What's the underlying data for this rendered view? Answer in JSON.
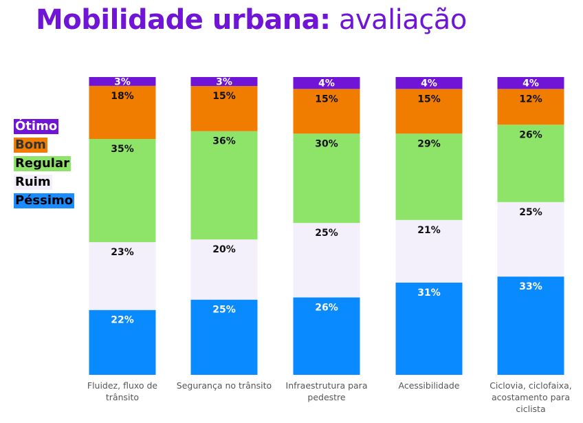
{
  "title": {
    "bold": "Mobilidade urbana:",
    "light": "avaliação"
  },
  "legend": [
    {
      "label": "Ótimo",
      "bg": "#7014d6",
      "fg": "#ffffff"
    },
    {
      "label": "Bom",
      "bg": "#f07d00",
      "fg": "#333333"
    },
    {
      "label": "Regular",
      "bg": "#8ee468",
      "fg": "#000000"
    },
    {
      "label": "Ruim",
      "bg": "#f3effb",
      "fg": "#000000"
    },
    {
      "label": "Péssimo",
      "bg": "#1a8cff",
      "fg": "#000000"
    }
  ],
  "chart_data": {
    "type": "bar",
    "stacked": true,
    "normalized": true,
    "categories": [
      [
        "Fluidez, fluxo de",
        "trânsito"
      ],
      [
        "Segurança no trânsito"
      ],
      [
        "Infraestrutura para",
        "pedestre"
      ],
      [
        "Acessibilidade"
      ],
      [
        "Ciclovia, ciclofaixa,",
        "acostamento para",
        "ciclista"
      ]
    ],
    "series": [
      {
        "name": "Péssimo",
        "color": "#0a8aff",
        "label_color": "#ffffff",
        "values": [
          22,
          25,
          26,
          31,
          33
        ]
      },
      {
        "name": "Ruim",
        "color": "#f3effb",
        "label_color": "#111111",
        "values": [
          23,
          20,
          25,
          21,
          25
        ]
      },
      {
        "name": "Regular",
        "color": "#8ee468",
        "label_color": "#111111",
        "values": [
          35,
          36,
          30,
          29,
          26
        ]
      },
      {
        "name": "Bom",
        "color": "#f07d00",
        "label_color": "#111111",
        "values": [
          18,
          15,
          15,
          15,
          12
        ]
      },
      {
        "name": "Ótimo",
        "color": "#7014d6",
        "label_color": "#ffffff",
        "values": [
          3,
          3,
          4,
          4,
          4
        ]
      }
    ],
    "value_suffix": "%",
    "title": "Mobilidade urbana: avaliação",
    "legend_position": "left",
    "grid": false
  }
}
